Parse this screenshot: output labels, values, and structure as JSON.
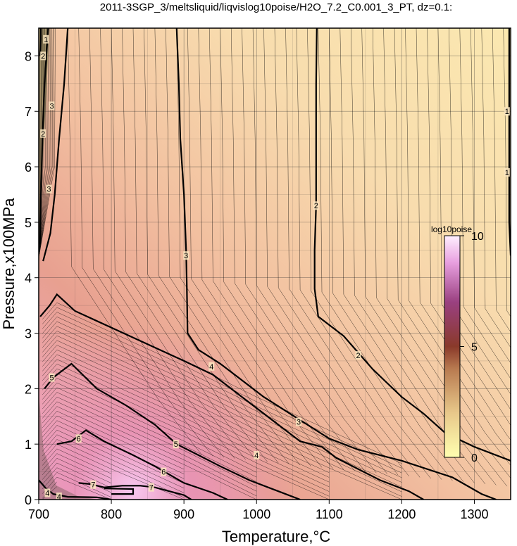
{
  "chart_data": {
    "type": "contour",
    "title": "2011-3SGP_3/meltsliquid/liqvislog10poise/H2O_7.2_C0.001_3_PT, dz=0.1:",
    "xlabel": "Temperature,°C",
    "ylabel": "Pressure,x100MPa",
    "xlim": [
      700,
      1350
    ],
    "ylim": [
      0,
      8.5
    ],
    "x_ticks": [
      "700",
      "800",
      "900",
      "1000",
      "1100",
      "1200",
      "1300"
    ],
    "y_ticks": [
      "0",
      "1",
      "2",
      "3",
      "4",
      "5",
      "6",
      "7",
      "8"
    ],
    "grid": true,
    "contour_interval": 0.1,
    "colorbar": {
      "title": "log10poise",
      "ticks": [
        "10",
        "5",
        "0"
      ],
      "range": [
        0,
        10
      ],
      "colors": [
        "#ffffb0",
        "#e8c88a",
        "#b87a50",
        "#8a3a2a",
        "#9a4080",
        "#e8a0e0",
        "#fff0ff"
      ]
    },
    "contour_labels": [
      {
        "text": "1",
        "t": 710,
        "p": 8.3
      },
      {
        "text": "2",
        "t": 706,
        "p": 8.0
      },
      {
        "text": "3",
        "t": 718,
        "p": 7.1
      },
      {
        "text": "2",
        "t": 706,
        "p": 6.6
      },
      {
        "text": "3",
        "t": 714,
        "p": 5.6
      },
      {
        "text": "1",
        "t": 1345,
        "p": 7.0
      },
      {
        "text": "1",
        "t": 1345,
        "p": 5.9
      },
      {
        "text": "2",
        "t": 1082,
        "p": 5.3
      },
      {
        "text": "3",
        "t": 903,
        "p": 4.4
      },
      {
        "text": "2",
        "t": 1140,
        "p": 2.6
      },
      {
        "text": "3",
        "t": 1058,
        "p": 1.4
      },
      {
        "text": "4",
        "t": 938,
        "p": 2.4
      },
      {
        "text": "4",
        "t": 1000,
        "p": 0.8
      },
      {
        "text": "5",
        "t": 718,
        "p": 2.2
      },
      {
        "text": "5",
        "t": 889,
        "p": 1.0
      },
      {
        "text": "6",
        "t": 755,
        "p": 1.1
      },
      {
        "text": "6",
        "t": 872,
        "p": 0.5
      },
      {
        "text": "7",
        "t": 775,
        "p": 0.27
      },
      {
        "text": "7",
        "t": 855,
        "p": 0.22
      },
      {
        "text": "4",
        "t": 712,
        "p": 0.12
      },
      {
        "text": "4",
        "t": 728,
        "p": 0.05
      }
    ],
    "bold_contours": [
      {
        "level": 1,
        "points": [
          [
            703,
            8.5
          ],
          [
            703,
            8.3
          ],
          [
            702,
            8.0
          ]
        ]
      },
      {
        "level": 1,
        "points": [
          [
            1350,
            4.4
          ],
          [
            1348,
            5.0
          ],
          [
            1348,
            6.0
          ],
          [
            1348,
            7.0
          ],
          [
            1348,
            8.5
          ]
        ]
      },
      {
        "level": 2,
        "points": [
          [
            1083,
            8.5
          ],
          [
            1082,
            7.5
          ],
          [
            1082,
            6.5
          ],
          [
            1082,
            5.3
          ],
          [
            1080,
            4.5
          ],
          [
            1080,
            3.8
          ],
          [
            1085,
            3.3
          ],
          [
            1100,
            3.15
          ],
          [
            1120,
            2.95
          ],
          [
            1140,
            2.65
          ],
          [
            1160,
            2.35
          ],
          [
            1180,
            2.1
          ],
          [
            1200,
            1.85
          ],
          [
            1230,
            1.55
          ],
          [
            1260,
            1.2
          ],
          [
            1300,
            0.95
          ],
          [
            1350,
            0.7
          ]
        ]
      },
      {
        "level": 2,
        "points": [
          [
            713,
            8.5
          ],
          [
            708,
            7.5
          ],
          [
            705,
            6.5
          ],
          [
            703,
            5.5
          ],
          [
            702,
            4.6
          ]
        ]
      },
      {
        "level": 3,
        "points": [
          [
            890,
            8.5
          ],
          [
            893,
            7.5
          ],
          [
            895,
            6.5
          ],
          [
            900,
            5.5
          ],
          [
            903,
            4.5
          ],
          [
            904,
            3.8
          ],
          [
            905,
            3.0
          ],
          [
            920,
            2.7
          ],
          [
            950,
            2.45
          ],
          [
            980,
            2.15
          ],
          [
            1010,
            1.85
          ],
          [
            1040,
            1.6
          ],
          [
            1070,
            1.35
          ],
          [
            1100,
            1.1
          ],
          [
            1140,
            0.9
          ],
          [
            1200,
            0.7
          ],
          [
            1270,
            0.4
          ],
          [
            1310,
            0.1
          ],
          [
            1330,
            0
          ]
        ]
      },
      {
        "level": 3,
        "points": [
          [
            740,
            8.5
          ],
          [
            735,
            7.5
          ],
          [
            728,
            6.5
          ],
          [
            722,
            5.5
          ],
          [
            716,
            4.8
          ],
          [
            712,
            4.6
          ],
          [
            706,
            4.3
          ]
        ]
      },
      {
        "level": 4,
        "points": [
          [
            702,
            3.3
          ],
          [
            715,
            3.5
          ],
          [
            725,
            3.7
          ],
          [
            750,
            3.4
          ],
          [
            800,
            3.1
          ],
          [
            850,
            2.8
          ],
          [
            900,
            2.5
          ],
          [
            940,
            2.25
          ],
          [
            980,
            1.85
          ],
          [
            1020,
            1.45
          ],
          [
            1060,
            1.05
          ],
          [
            1090,
            0.95
          ],
          [
            1110,
            0.75
          ],
          [
            1140,
            0.55
          ],
          [
            1170,
            0.35
          ],
          [
            1210,
            0.15
          ],
          [
            1230,
            0
          ]
        ]
      },
      {
        "level": 5,
        "points": [
          [
            708,
            2.0
          ],
          [
            720,
            2.2
          ],
          [
            745,
            2.45
          ],
          [
            780,
            2.0
          ],
          [
            820,
            1.7
          ],
          [
            860,
            1.35
          ],
          [
            890,
            1.0
          ],
          [
            920,
            0.8
          ],
          [
            950,
            0.6
          ],
          [
            990,
            0.35
          ],
          [
            1030,
            0.15
          ],
          [
            1060,
            0
          ]
        ]
      },
      {
        "level": 6,
        "points": [
          [
            725,
            1.0
          ],
          [
            745,
            1.05
          ],
          [
            765,
            1.25
          ],
          [
            790,
            1.05
          ],
          [
            830,
            0.8
          ],
          [
            860,
            0.6
          ],
          [
            880,
            0.45
          ],
          [
            900,
            0.3
          ],
          [
            940,
            0.12
          ],
          [
            960,
            0
          ]
        ]
      },
      {
        "level": 7,
        "points": [
          [
            755,
            0.3
          ],
          [
            770,
            0.28
          ],
          [
            790,
            0.22
          ],
          [
            815,
            0.25
          ],
          [
            840,
            0.25
          ],
          [
            860,
            0.22
          ],
          [
            880,
            0.15
          ],
          [
            900,
            0.08
          ],
          [
            910,
            0
          ]
        ]
      },
      {
        "level": 7,
        "points": [
          [
            790,
            0.2
          ],
          [
            830,
            0.19
          ],
          [
            830,
            0.1
          ],
          [
            800,
            0.1
          ]
        ]
      },
      {
        "level": 4,
        "points": [
          [
            700,
            0.35
          ],
          [
            710,
            0.2
          ],
          [
            720,
            0.1
          ],
          [
            740,
            0.05
          ],
          [
            780,
            0.04
          ],
          [
            800,
            0
          ]
        ]
      }
    ]
  }
}
